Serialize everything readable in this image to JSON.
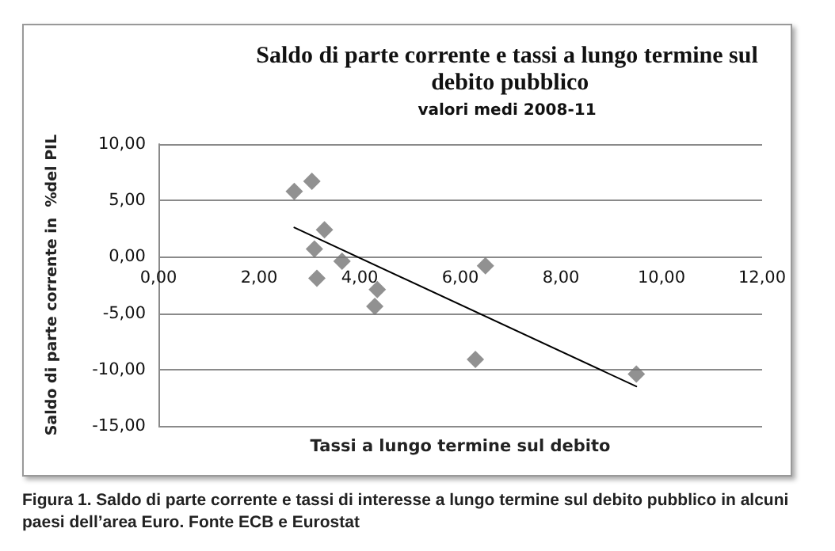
{
  "chart_data": {
    "type": "scatter",
    "title": "Saldo di parte corrente e tassi a lungo termine sul debito pubblico",
    "subtitle": "valori medi 2008-11",
    "xlabel": "Tassi a lungo termine sul debito",
    "ylabel": "Saldo di parte corrente in  %del PIL",
    "annotations": [
      "Figura 1. Saldo di parte corrente e tassi di interesse a lungo termine sul debito pubblico in alcuni paesi dell’area Euro. Fonte ECB e Eurostat"
    ],
    "marker": "diamond",
    "grid": "y",
    "series": [
      {
        "color": "#767676",
        "x": [
          2.7,
          3.05,
          3.3,
          3.1,
          3.65,
          3.15,
          4.35,
          4.3,
          6.5,
          6.3,
          9.5
        ],
        "values": [
          5.8,
          6.7,
          2.4,
          0.7,
          -0.4,
          -1.9,
          -2.9,
          -4.4,
          -0.8,
          -9.1,
          -10.4
        ]
      },
      {
        "type": "line",
        "color": "#000000",
        "marker": "none",
        "x": [
          2.7,
          9.5
        ],
        "values": [
          2.6,
          -11.5
        ]
      }
    ],
    "xlim": [
      0,
      12
    ],
    "xticks": [
      {
        "value": 0,
        "label": "0,00"
      },
      {
        "value": 2,
        "label": "2,00"
      },
      {
        "value": 4,
        "label": "4,00"
      },
      {
        "value": 6,
        "label": "6,00"
      },
      {
        "value": 8,
        "label": "8,00"
      },
      {
        "value": 10,
        "label": "10,00"
      },
      {
        "value": 12,
        "label": "12,00"
      }
    ],
    "ylim": [
      -15,
      10
    ],
    "yticks": [
      {
        "value": -15,
        "label": "-15,00"
      },
      {
        "value": -10,
        "label": "-10,00"
      },
      {
        "value": -5,
        "label": "-5,00"
      },
      {
        "value": 0,
        "label": "0,00"
      },
      {
        "value": 5,
        "label": "5,00"
      },
      {
        "value": 10,
        "label": "10,00"
      }
    ]
  }
}
